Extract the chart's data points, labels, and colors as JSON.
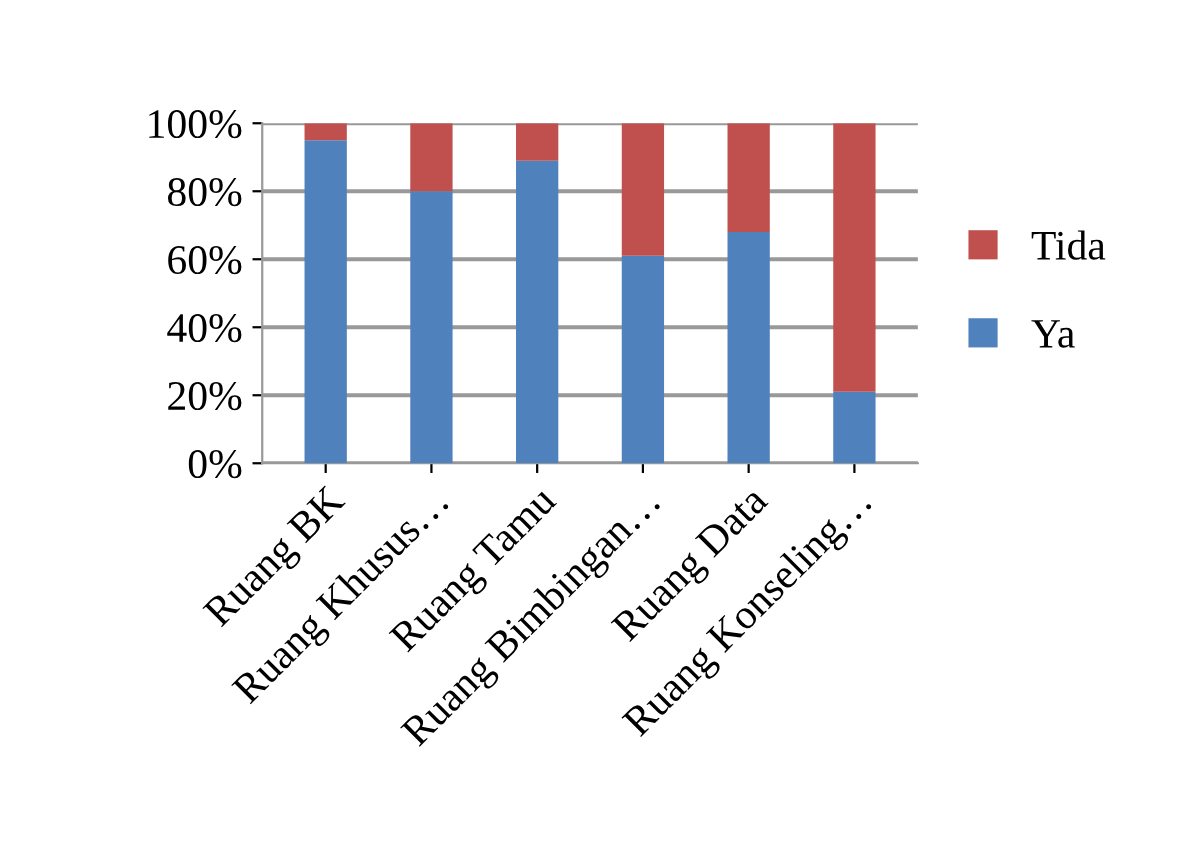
{
  "chart_data": {
    "type": "bar",
    "stacked": true,
    "categories": [
      "Ruang BK",
      "Ruang Khusus…",
      "Ruang Tamu",
      "Ruang Bimbingan…",
      "Ruang Data",
      "Ruang Konseling…"
    ],
    "series": [
      {
        "name": "Ya",
        "color": "#4f81bd",
        "values": [
          95,
          80,
          89,
          61,
          68,
          21
        ]
      },
      {
        "name": "Tida",
        "color": "#c0504d",
        "values": [
          5,
          20,
          11,
          39,
          32,
          79
        ]
      }
    ],
    "ylim": [
      0,
      100
    ],
    "yticks": [
      {
        "value": 0,
        "label": "0%"
      },
      {
        "value": 20,
        "label": "20%"
      },
      {
        "value": 40,
        "label": "40%"
      },
      {
        "value": 60,
        "label": "60%"
      },
      {
        "value": 80,
        "label": "80%"
      },
      {
        "value": 100,
        "label": "100%"
      }
    ],
    "grid": "y",
    "legend": "right"
  }
}
